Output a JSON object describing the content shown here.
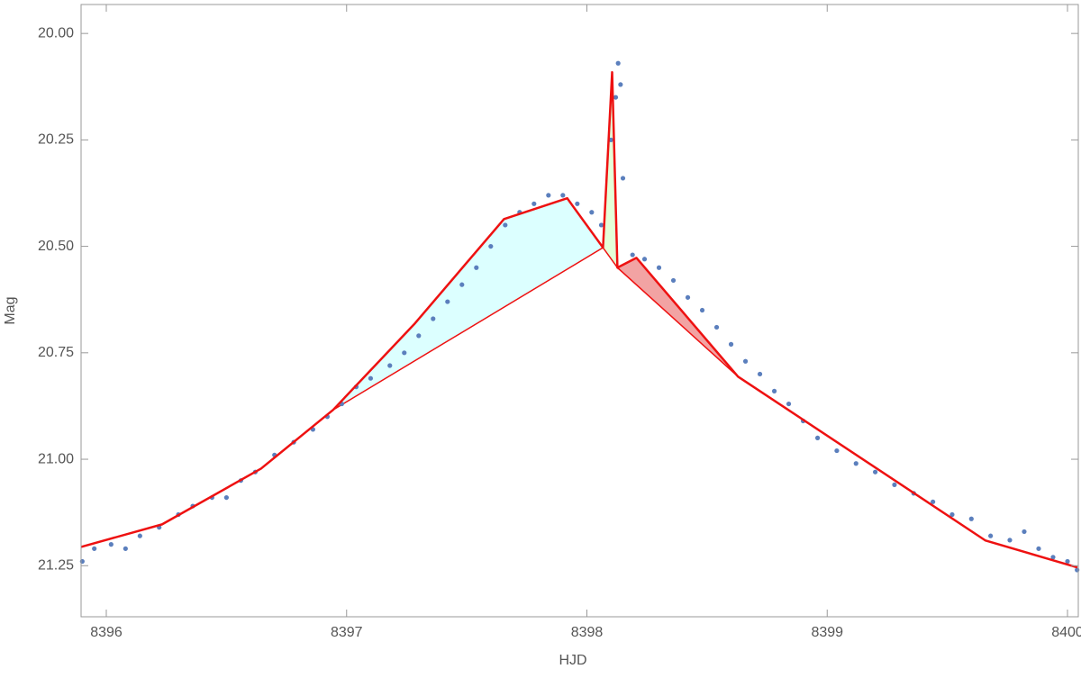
{
  "chart_data": {
    "type": "scatter_line",
    "x_label": "HJD",
    "y_label": "Mag",
    "xlim": [
      8395.895,
      8400.045
    ],
    "ylim": [
      19.932,
      21.37
    ],
    "y_inverted": true,
    "xticks": [
      8396,
      8397,
      8398,
      8399,
      8400
    ],
    "yticks": [
      {
        "value": 20,
        "label": "20.00"
      },
      20.25,
      {
        "value": 20.5,
        "label": "20.50"
      },
      20.75,
      {
        "value": 21,
        "label": "21.00"
      },
      21.25
    ],
    "points": {
      "color": "#5b7fbd",
      "x": [
        8395.9,
        8395.95,
        8396.02,
        8396.08,
        8396.14,
        8396.22,
        8396.3,
        8396.36,
        8396.44,
        8396.5,
        8396.56,
        8396.62,
        8396.7,
        8396.78,
        8396.86,
        8396.92,
        8396.98,
        8397.04,
        8397.1,
        8397.18,
        8397.24,
        8397.3,
        8397.36,
        8397.42,
        8397.48,
        8397.54,
        8397.6,
        8397.66,
        8397.72,
        8397.78,
        8397.84,
        8397.9,
        8397.96,
        8398.02,
        8398.06,
        8398.1,
        8398.12,
        8398.13,
        8398.14,
        8398.15,
        8398.19,
        8398.24,
        8398.3,
        8398.36,
        8398.42,
        8398.48,
        8398.54,
        8398.6,
        8398.66,
        8398.72,
        8398.78,
        8398.84,
        8398.9,
        8398.96,
        8399.04,
        8399.12,
        8399.2,
        8399.28,
        8399.36,
        8399.44,
        8399.52,
        8399.6,
        8399.68,
        8399.76,
        8399.82,
        8399.88,
        8399.94,
        8400.0,
        8400.04
      ],
      "y": [
        21.24,
        21.21,
        21.2,
        21.21,
        21.18,
        21.16,
        21.13,
        21.11,
        21.09,
        21.09,
        21.05,
        21.03,
        20.99,
        20.96,
        20.93,
        20.9,
        20.87,
        20.83,
        20.81,
        20.78,
        20.75,
        20.71,
        20.67,
        20.63,
        20.59,
        20.55,
        20.5,
        20.45,
        20.42,
        20.4,
        20.38,
        20.38,
        20.4,
        20.42,
        20.45,
        20.25,
        20.15,
        20.07,
        20.12,
        20.34,
        20.52,
        20.53,
        20.55,
        20.58,
        20.62,
        20.65,
        20.69,
        20.73,
        20.77,
        20.8,
        20.84,
        20.87,
        20.91,
        20.95,
        20.98,
        21.01,
        21.03,
        21.06,
        21.08,
        21.1,
        21.13,
        21.14,
        21.18,
        21.19,
        21.17,
        21.21,
        21.23,
        21.24,
        21.26
      ]
    },
    "fit": {
      "color": "#ee1111",
      "x": [
        8395.895,
        8396.232,
        8396.644,
        8396.944,
        8397.281,
        8397.655,
        8397.918,
        8398.067,
        8398.105,
        8398.127,
        8398.206,
        8398.629,
        8399.659,
        8400.041
      ],
      "y": [
        21.206,
        21.153,
        21.022,
        20.884,
        20.683,
        20.436,
        20.387,
        20.503,
        20.091,
        20.55,
        20.527,
        20.806,
        21.191,
        21.254
      ]
    },
    "regions": [
      {
        "from": 3,
        "to": 7,
        "color": "#dcffff"
      },
      {
        "from": 7,
        "to": 9,
        "color": "#e4ffd8"
      },
      {
        "from": 9,
        "to": 11,
        "color": "#f2a3a3"
      }
    ]
  }
}
